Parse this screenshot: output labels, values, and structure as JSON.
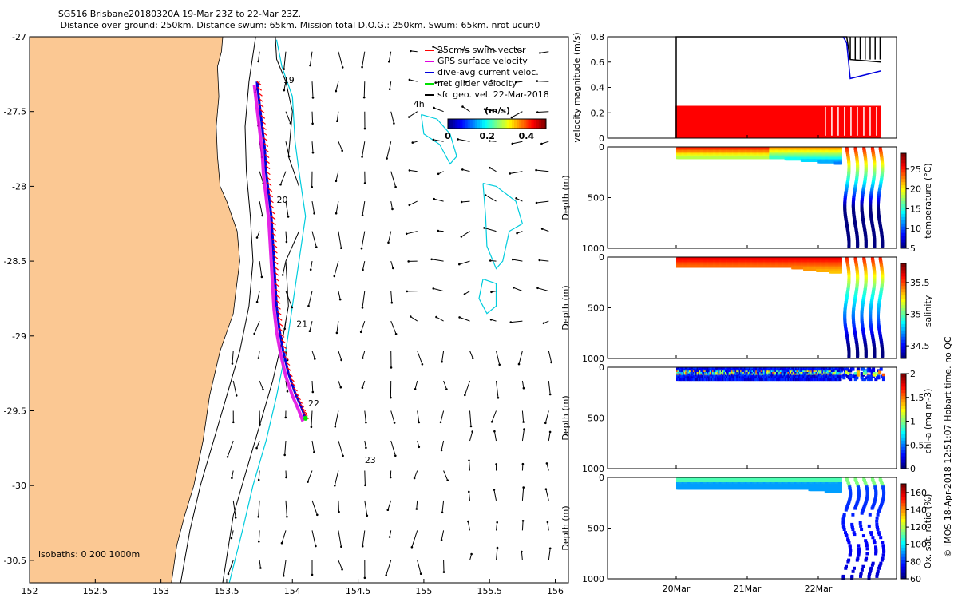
{
  "title": {
    "line1": "SG516 Brisbane20180320A 19-Mar 23Z to 22-Mar 23Z.",
    "line2": "Distance over ground: 250km. Distance swum: 65km. Mission total D.O.G.: 250km. Swum: 65km. nrot ucur:0"
  },
  "side_stamp": "© IMOS 18-Apr-2018 12:51:07 Hobart time. no QC",
  "colors": {
    "land": "#fbc893",
    "swim": "#ff0000",
    "gps": "#e000e0",
    "dive": "#0000dd",
    "net": "#00e000",
    "contour": "#00ccdd",
    "isobath": "#000000"
  },
  "chart_data": [
    {
      "type": "scatter",
      "name": "map",
      "xlim": [
        152,
        156.1
      ],
      "ylim": [
        -30.65,
        -27
      ],
      "x_ticks": [
        "152",
        "152.5",
        "153",
        "153.5",
        "154",
        "154.5",
        "155",
        "155.5",
        "156"
      ],
      "y_ticks": [
        "-27",
        "-27.5",
        "-28",
        "-28.5",
        "-29",
        "-29.5",
        "-30",
        "-30.5"
      ],
      "legend": {
        "position": "top-right",
        "entries": [
          "25cm/s swim vector",
          "GPS surface velocity",
          "dive-avg current veloc.",
          "net glider velocity",
          "sfc geo. vel. 22-Mar-2018"
        ]
      },
      "colorbar": {
        "label": "(m/s)",
        "ticks": [
          "0",
          "0.2",
          "0.4"
        ],
        "range": [
          0,
          0.5
        ]
      },
      "annotations": {
        "day_labels": [
          {
            "text": "19",
            "lon": 153.93,
            "lat": -27.31
          },
          {
            "text": "20",
            "lon": 153.88,
            "lat": -28.11
          },
          {
            "text": "21",
            "lon": 154.03,
            "lat": -28.94
          },
          {
            "text": "22",
            "lon": 154.12,
            "lat": -29.47
          },
          {
            "text": "23",
            "lon": 154.55,
            "lat": -29.85
          },
          {
            "text": "4h",
            "lon": 154.92,
            "lat": -27.47
          }
        ],
        "isobath_label": "isobaths: 0   200  1000m"
      },
      "glider_track": [
        [
          153.73,
          -27.3
        ],
        [
          153.75,
          -27.45
        ],
        [
          153.77,
          -27.6
        ],
        [
          153.79,
          -27.75
        ],
        [
          153.8,
          -27.9
        ],
        [
          153.82,
          -28.05
        ],
        [
          153.84,
          -28.2
        ],
        [
          153.85,
          -28.35
        ],
        [
          153.86,
          -28.5
        ],
        [
          153.87,
          -28.65
        ],
        [
          153.88,
          -28.8
        ],
        [
          153.9,
          -28.95
        ],
        [
          153.93,
          -29.1
        ],
        [
          153.97,
          -29.25
        ],
        [
          154.02,
          -29.38
        ],
        [
          154.07,
          -29.48
        ],
        [
          154.1,
          -29.55
        ]
      ],
      "coastline": [
        [
          154.0,
          -27.0
        ],
        [
          153.47,
          -27.0
        ],
        [
          153.46,
          -27.1
        ],
        [
          153.43,
          -27.2
        ],
        [
          153.44,
          -27.4
        ],
        [
          153.42,
          -27.6
        ],
        [
          153.43,
          -27.8
        ],
        [
          153.45,
          -28.0
        ],
        [
          153.5,
          -28.1
        ],
        [
          153.58,
          -28.3
        ],
        [
          153.6,
          -28.5
        ],
        [
          153.57,
          -28.7
        ],
        [
          153.55,
          -28.85
        ],
        [
          153.45,
          -29.1
        ],
        [
          153.37,
          -29.4
        ],
        [
          153.32,
          -29.7
        ],
        [
          153.25,
          -30.0
        ],
        [
          153.18,
          -30.2
        ],
        [
          153.12,
          -30.4
        ],
        [
          153.08,
          -30.65
        ]
      ],
      "isobath_200m": [
        [
          153.72,
          -27.0
        ],
        [
          153.67,
          -27.3
        ],
        [
          153.64,
          -27.6
        ],
        [
          153.65,
          -27.9
        ],
        [
          153.68,
          -28.2
        ],
        [
          153.7,
          -28.5
        ],
        [
          153.67,
          -28.8
        ],
        [
          153.6,
          -29.1
        ],
        [
          153.5,
          -29.4
        ],
        [
          153.4,
          -29.7
        ],
        [
          153.3,
          -30.0
        ],
        [
          153.22,
          -30.3
        ],
        [
          153.15,
          -30.65
        ]
      ],
      "isobath_1000m": [
        [
          153.87,
          -27.0
        ],
        [
          153.88,
          -27.15
        ],
        [
          153.95,
          -27.3
        ],
        [
          154.0,
          -27.5
        ],
        [
          153.97,
          -27.8
        ],
        [
          154.05,
          -28.0
        ],
        [
          154.05,
          -28.3
        ],
        [
          153.95,
          -28.5
        ],
        [
          153.97,
          -28.8
        ],
        [
          153.93,
          -29.0
        ],
        [
          153.85,
          -29.3
        ],
        [
          153.75,
          -29.6
        ],
        [
          153.65,
          -29.9
        ],
        [
          153.55,
          -30.2
        ],
        [
          153.47,
          -30.65
        ]
      ],
      "current_contours": [
        [
          [
            153.88,
            -27.02
          ],
          [
            153.92,
            -27.2
          ],
          [
            154.0,
            -27.4
          ],
          [
            154.02,
            -27.7
          ],
          [
            154.05,
            -27.9
          ],
          [
            154.1,
            -28.2
          ],
          [
            154.05,
            -28.5
          ],
          [
            154.0,
            -28.8
          ],
          [
            153.95,
            -29.1
          ],
          [
            153.88,
            -29.4
          ],
          [
            153.8,
            -29.7
          ],
          [
            153.7,
            -30.0
          ],
          [
            153.62,
            -30.3
          ],
          [
            153.52,
            -30.65
          ]
        ],
        [
          [
            154.98,
            -27.52
          ],
          [
            155.1,
            -27.55
          ],
          [
            155.2,
            -27.65
          ],
          [
            155.25,
            -27.8
          ],
          [
            155.2,
            -27.85
          ],
          [
            155.12,
            -27.72
          ],
          [
            155.0,
            -27.65
          ],
          [
            154.98,
            -27.52
          ]
        ],
        [
          [
            155.45,
            -27.98
          ],
          [
            155.55,
            -28.0
          ],
          [
            155.7,
            -28.1
          ],
          [
            155.75,
            -28.25
          ],
          [
            155.65,
            -28.3
          ],
          [
            155.6,
            -28.5
          ],
          [
            155.55,
            -28.55
          ],
          [
            155.48,
            -28.4
          ],
          [
            155.47,
            -28.2
          ],
          [
            155.45,
            -27.98
          ]
        ],
        [
          [
            155.45,
            -28.62
          ],
          [
            155.55,
            -28.65
          ],
          [
            155.55,
            -28.8
          ],
          [
            155.48,
            -28.85
          ],
          [
            155.42,
            -28.75
          ],
          [
            155.45,
            -28.62
          ]
        ]
      ]
    },
    {
      "type": "line",
      "name": "velocity magnitude",
      "ylabel": "velocity magnitude (m/s)",
      "ylim": [
        0,
        0.8
      ],
      "y_ticks": [
        "0",
        "0.2",
        "0.4",
        "0.6",
        "0.8"
      ],
      "x_range": [
        18.5,
        22.9
      ],
      "series": [
        {
          "color": "#ff0000",
          "points": [
            [
              20.0,
              0.0
            ],
            [
              20.0,
              0.25
            ],
            [
              22.88,
              0.25
            ]
          ]
        },
        {
          "color": "#000000",
          "points": [
            [
              20.0,
              0.0
            ],
            [
              20.0,
              0.8
            ],
            [
              22.4,
              0.8
            ],
            [
              22.45,
              0.62
            ],
            [
              22.88,
              0.6
            ]
          ]
        },
        {
          "color": "#0000dd",
          "points": [
            [
              22.35,
              0.8
            ],
            [
              22.4,
              0.75
            ],
            [
              22.45,
              0.47
            ],
            [
              22.88,
              0.53
            ]
          ]
        }
      ]
    },
    {
      "type": "scatter",
      "name": "temperature",
      "ylabel": "Depth (m)",
      "colorbar_label": "temperature (°C)",
      "colorbar_ticks": [
        "5",
        "10",
        "15",
        "20",
        "25"
      ],
      "colorbar_range": [
        5,
        29
      ],
      "ylim": [
        1000,
        0
      ],
      "y_ticks": [
        "0",
        "500",
        "1000"
      ]
    },
    {
      "type": "scatter",
      "name": "salinity",
      "ylabel": "Depth (m)",
      "colorbar_label": "salinity",
      "colorbar_ticks": [
        "34.5",
        "35",
        "35.5"
      ],
      "colorbar_range": [
        34.3,
        35.8
      ],
      "ylim": [
        1000,
        0
      ],
      "y_ticks": [
        "0",
        "500",
        "1000"
      ]
    },
    {
      "type": "scatter",
      "name": "chl-a",
      "ylabel": "Depth (m)",
      "colorbar_label": "chl-a (mg m-3)",
      "colorbar_ticks": [
        "0",
        "0.5",
        "1",
        "1.5",
        "2"
      ],
      "colorbar_range": [
        0,
        2
      ],
      "ylim": [
        1000,
        0
      ],
      "y_ticks": [
        "0",
        "500",
        "1000"
      ]
    },
    {
      "type": "scatter",
      "name": "oxygen",
      "ylabel": "Depth (m)",
      "colorbar_label": "Ox. sat. ratio (%)",
      "colorbar_ticks": [
        "60",
        "80",
        "100",
        "120",
        "140",
        "160"
      ],
      "colorbar_range": [
        60,
        170
      ],
      "ylim": [
        1000,
        0
      ],
      "y_ticks": [
        "0",
        "500",
        "1000"
      ],
      "x_ticks": [
        "20Mar",
        "21Mar",
        "22Mar"
      ]
    }
  ]
}
